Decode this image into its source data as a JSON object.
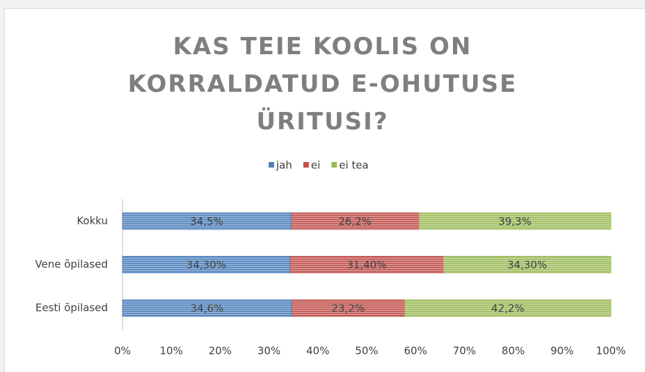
{
  "chart_data": {
    "type": "stacked_barh",
    "title": "KAS TEIE KOOLIS ON KORRALDATUD E-OHUTUSE ÜRITUSI?",
    "categories": [
      "Kokku",
      "Vene õpilased",
      "Eesti õpilased"
    ],
    "series": [
      {
        "name": "jah",
        "color": "#4f81bd",
        "values": [
          34.5,
          34.3,
          34.6
        ],
        "value_labels": [
          "34,5%",
          "34,30%",
          "34,6%"
        ]
      },
      {
        "name": "ei",
        "color": "#c0504d",
        "values": [
          26.2,
          31.4,
          23.2
        ],
        "value_labels": [
          "26,2%",
          "31,40%",
          "23,2%"
        ]
      },
      {
        "name": "ei tea",
        "color": "#9bbb59",
        "values": [
          39.3,
          34.3,
          42.2
        ],
        "value_labels": [
          "39,3%",
          "34,30%",
          "42,2%"
        ]
      }
    ],
    "xlim": [
      0,
      100
    ],
    "xticks": [
      {
        "value": 0,
        "label": "0%"
      },
      {
        "value": 10,
        "label": "10%"
      },
      {
        "value": 20,
        "label": "20%"
      },
      {
        "value": 30,
        "label": "30%"
      },
      {
        "value": 40,
        "label": "40%"
      },
      {
        "value": 50,
        "label": "50%"
      },
      {
        "value": 60,
        "label": "60%"
      },
      {
        "value": 70,
        "label": "70%"
      },
      {
        "value": 80,
        "label": "80%"
      },
      {
        "value": 90,
        "label": "90%"
      },
      {
        "value": 100,
        "label": "100%"
      }
    ],
    "grid": false,
    "legend": "top"
  }
}
